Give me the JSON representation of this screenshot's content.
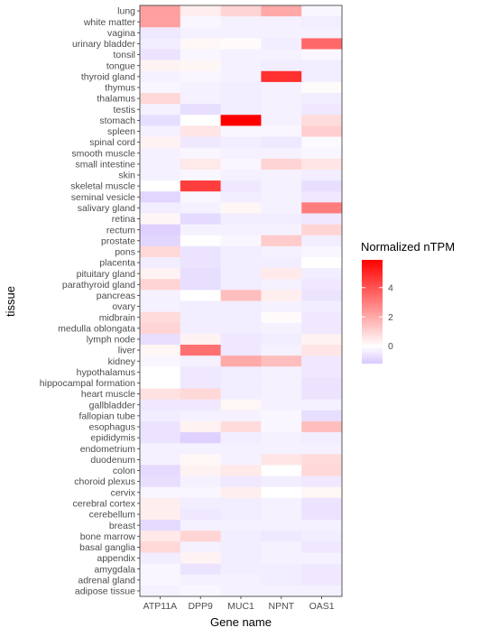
{
  "chart_data": {
    "type": "heatmap",
    "xlabel": "Gene name",
    "ylabel": "tissue",
    "legend_title": "Normalized nTPM",
    "legend_ticks": [
      0,
      2,
      4
    ],
    "legend_range": [
      -1.2,
      5.9
    ],
    "legend_placement": "right",
    "grid": false,
    "colors": {
      "low": "#d8c8ff",
      "mid": "#ffffff",
      "high": "#ff0000"
    },
    "genes": [
      "ATP11A",
      "DPP9",
      "MUC1",
      "NPNT",
      "OAS1"
    ],
    "tissues": [
      "lung",
      "white matter",
      "vagina",
      "urinary bladder",
      "tonsil",
      "tongue",
      "thyroid gland",
      "thymus",
      "thalamus",
      "testis",
      "stomach",
      "spleen",
      "spinal cord",
      "smooth muscle",
      "small intestine",
      "skin",
      "skeletal muscle",
      "seminal vesicle",
      "salivary gland",
      "retina",
      "rectum",
      "prostate",
      "pons",
      "placenta",
      "pituitary gland",
      "parathyroid gland",
      "pancreas",
      "ovary",
      "midbrain",
      "medulla oblongata",
      "lymph node",
      "liver",
      "kidney",
      "hypothalamus",
      "hippocampal formation",
      "heart muscle",
      "gallbladder",
      "fallopian tube",
      "esophagus",
      "epididymis",
      "endometrium",
      "duodenum",
      "colon",
      "choroid plexus",
      "cervix",
      "cerebral cortex",
      "cerebellum",
      "breast",
      "bone marrow",
      "basal ganglia",
      "appendix",
      "amygdala",
      "adrenal gland",
      "adipose tissue"
    ],
    "values": [
      [
        2.2,
        0.4,
        1.0,
        2.0,
        -0.2
      ],
      [
        2.2,
        -0.2,
        -0.3,
        -0.3,
        -0.4
      ],
      [
        -0.5,
        -0.3,
        -0.3,
        -0.3,
        -0.3
      ],
      [
        -0.4,
        0.2,
        0.1,
        -0.4,
        3.5
      ],
      [
        -0.6,
        -0.2,
        -0.3,
        -0.3,
        -0.2
      ],
      [
        0.3,
        0.2,
        -0.3,
        -0.4,
        -0.4
      ],
      [
        -0.3,
        -0.2,
        -0.3,
        4.8,
        -0.4
      ],
      [
        -0.2,
        -0.3,
        -0.4,
        -0.3,
        0.1
      ],
      [
        0.9,
        -0.3,
        -0.4,
        -0.3,
        -0.4
      ],
      [
        -0.3,
        -0.7,
        -0.4,
        -0.3,
        -0.5
      ],
      [
        -0.7,
        0.0,
        5.9,
        -0.3,
        0.8
      ],
      [
        -0.3,
        0.6,
        -0.2,
        -0.2,
        1.1
      ],
      [
        0.3,
        -0.5,
        -0.4,
        -0.5,
        -0.1
      ],
      [
        -0.3,
        -0.2,
        -0.3,
        -0.3,
        -0.2
      ],
      [
        -0.3,
        0.5,
        -0.2,
        1.0,
        0.6
      ],
      [
        -0.3,
        -0.2,
        -0.3,
        -0.3,
        -0.4
      ],
      [
        0.0,
        4.5,
        -0.5,
        -0.3,
        -0.7
      ],
      [
        -0.9,
        -0.2,
        -0.4,
        -0.3,
        -0.5
      ],
      [
        -0.4,
        -0.3,
        0.2,
        -0.3,
        3.0
      ],
      [
        0.2,
        -0.8,
        -0.4,
        -0.4,
        -0.5
      ],
      [
        -1.0,
        -0.3,
        -0.3,
        -0.3,
        1.0
      ],
      [
        -0.9,
        0.0,
        -0.2,
        1.2,
        -0.4
      ],
      [
        0.9,
        -0.6,
        -0.4,
        -0.3,
        -0.2
      ],
      [
        -0.4,
        -0.6,
        -0.4,
        -0.4,
        0.0
      ],
      [
        0.3,
        -0.7,
        -0.4,
        0.5,
        -0.4
      ],
      [
        1.0,
        -0.7,
        -0.4,
        -0.3,
        -0.5
      ],
      [
        -0.3,
        0.0,
        1.5,
        0.4,
        -0.6
      ],
      [
        -0.3,
        -0.4,
        -0.4,
        -0.3,
        -0.4
      ],
      [
        0.8,
        -0.4,
        -0.4,
        0.1,
        -0.5
      ],
      [
        1.0,
        -0.4,
        -0.4,
        -0.3,
        -0.5
      ],
      [
        -0.7,
        0.3,
        -0.5,
        -0.4,
        0.3
      ],
      [
        0.2,
        3.3,
        -0.5,
        -0.3,
        0.6
      ],
      [
        -0.2,
        -0.3,
        2.0,
        1.5,
        -0.5
      ],
      [
        0.0,
        -0.5,
        -0.4,
        -0.3,
        -0.5
      ],
      [
        0.0,
        -0.5,
        -0.4,
        -0.3,
        -0.6
      ],
      [
        0.7,
        0.9,
        -0.4,
        -0.3,
        -0.6
      ],
      [
        -0.5,
        -0.5,
        0.2,
        -0.3,
        -0.3
      ],
      [
        -0.4,
        -0.3,
        -0.3,
        -0.2,
        -0.7
      ],
      [
        -0.6,
        0.3,
        0.8,
        -0.2,
        1.5
      ],
      [
        -0.6,
        -1.0,
        -0.4,
        -0.3,
        -0.4
      ],
      [
        -0.3,
        -0.3,
        -0.3,
        -0.3,
        -0.3
      ],
      [
        -0.3,
        0.2,
        -0.3,
        0.6,
        0.8
      ],
      [
        -0.8,
        0.3,
        0.5,
        0.0,
        0.9
      ],
      [
        -0.7,
        -0.3,
        -0.5,
        -0.4,
        -0.5
      ],
      [
        -0.2,
        -0.2,
        0.4,
        0.0,
        0.2
      ],
      [
        0.4,
        -0.4,
        -0.4,
        -0.3,
        -0.6
      ],
      [
        0.4,
        -0.5,
        -0.4,
        -0.3,
        -0.6
      ],
      [
        -0.8,
        -0.3,
        -0.3,
        -0.3,
        -0.3
      ],
      [
        0.5,
        1.0,
        -0.4,
        -0.5,
        -0.4
      ],
      [
        0.9,
        -0.3,
        -0.4,
        -0.3,
        -0.5
      ],
      [
        -0.4,
        0.3,
        -0.4,
        -0.3,
        -0.3
      ],
      [
        -0.2,
        -0.6,
        -0.4,
        -0.4,
        -0.5
      ],
      [
        -0.2,
        -0.3,
        -0.3,
        -0.4,
        -0.5
      ],
      [
        -0.3,
        -0.2,
        -0.3,
        -0.3,
        -0.3
      ]
    ]
  }
}
